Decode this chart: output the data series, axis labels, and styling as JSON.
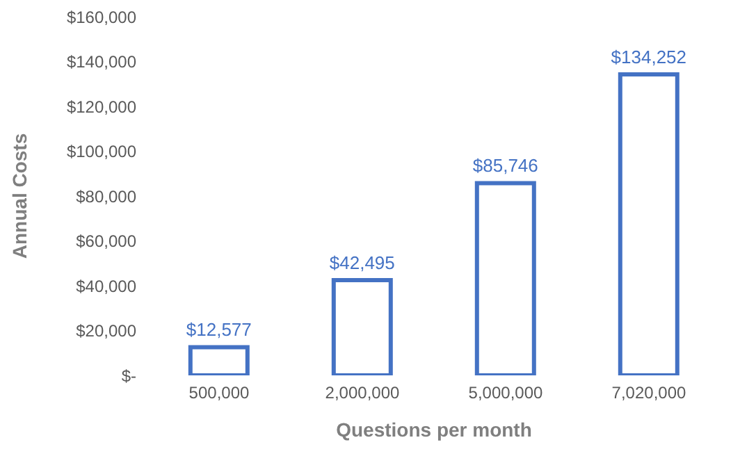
{
  "chart_data": {
    "type": "bar",
    "xlabel": "Questions per month",
    "ylabel": "Annual Costs",
    "categories": [
      "500,000",
      "2,000,000",
      "5,000,000",
      "7,020,000"
    ],
    "values": [
      12577,
      42495,
      85746,
      134252
    ],
    "value_labels": [
      "$12,577",
      "$42,495",
      "$85,746",
      "$134,252"
    ],
    "color": "#4472c4",
    "ylim": [
      0,
      160000
    ],
    "yticks": [
      {
        "value": 0,
        "label": "$-"
      },
      {
        "value": 20000,
        "label": "$20,000"
      },
      {
        "value": 40000,
        "label": "$40,000"
      },
      {
        "value": 60000,
        "label": "$60,000"
      },
      {
        "value": 80000,
        "label": "$80,000"
      },
      {
        "value": 100000,
        "label": "$100,000"
      },
      {
        "value": 120000,
        "label": "$120,000"
      },
      {
        "value": 140000,
        "label": "$140,000"
      },
      {
        "value": 160000,
        "label": "$160,000"
      }
    ],
    "grid": false,
    "legend": false
  }
}
